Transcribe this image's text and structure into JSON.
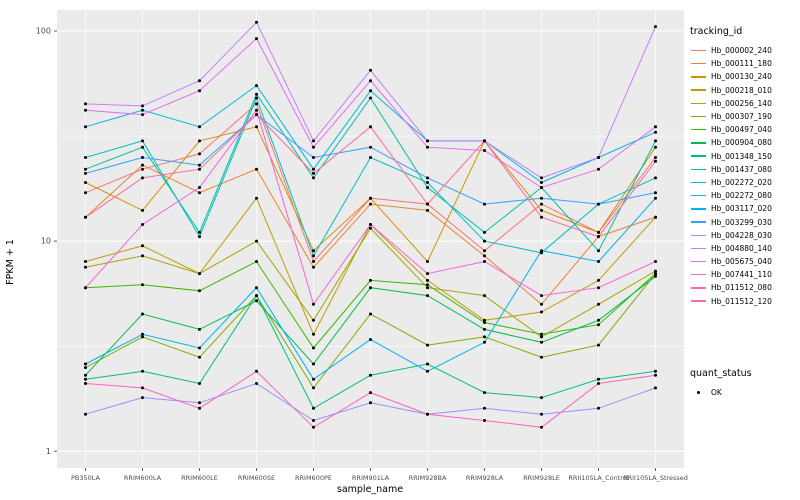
{
  "figure": {
    "x_axis_title": "sample_name",
    "y_axis_title": "FPKM + 1",
    "panel_color": "#EBEBEB",
    "gridline_color": "#FFFFFF",
    "tick_label_color": "#4D4D4D",
    "point_color": "#000000"
  },
  "legend": {
    "tracking_title": "tracking_id",
    "quant_title": "quant_status",
    "quant_entries": [
      {
        "label": "OK",
        "marker": "point-icon"
      }
    ]
  },
  "chart_data": {
    "type": "line",
    "title": "",
    "xlabel": "sample_name",
    "ylabel": "FPKM + 1",
    "y_scale": "log10",
    "ylim": [
      1,
      110
    ],
    "y_major_ticks": [
      1,
      10,
      100
    ],
    "y_minor_ticks": [
      3.1623,
      31.623
    ],
    "grid": true,
    "legend_position": "right",
    "point_marker": "black-point",
    "quant_status": "OK",
    "categories": [
      "PB350LA",
      "RRIM600LA",
      "RRIM600LE",
      "RRIM600SE",
      "RRIM600PE",
      "RRIM901LA",
      "RRIM928BA",
      "RRIM928LA",
      "RRIM928LE",
      "RRII105LA_Control",
      "RRII105LA_Stressed"
    ],
    "series": [
      {
        "name": "Hb_000002_240",
        "color": "#F8766D",
        "values": [
          17,
          22,
          26,
          45,
          8,
          16,
          15,
          9,
          15,
          11,
          25
        ]
      },
      {
        "name": "Hb_000111_180",
        "color": "#EA8331",
        "values": [
          13,
          23,
          17,
          22,
          7.5,
          15,
          14,
          8.5,
          5,
          10.5,
          13
        ]
      },
      {
        "name": "Hb_000130_240",
        "color": "#D89000",
        "values": [
          19,
          14,
          30,
          35,
          9,
          16,
          8,
          30,
          14,
          11,
          28
        ]
      },
      {
        "name": "Hb_000218_010",
        "color": "#C09B00",
        "values": [
          8,
          9.5,
          7,
          16,
          3.6,
          12,
          6.5,
          4.2,
          4.6,
          6.5,
          13
        ]
      },
      {
        "name": "Hb_000256_140",
        "color": "#A3A500",
        "values": [
          7.5,
          8.5,
          7,
          10,
          4.2,
          11.5,
          6,
          5.5,
          3.5,
          5,
          7.2
        ]
      },
      {
        "name": "Hb_000307_190",
        "color": "#7CAE00",
        "values": [
          2.5,
          3.5,
          2.8,
          5.5,
          2,
          4.5,
          3.2,
          3.5,
          2.8,
          3.2,
          7
        ]
      },
      {
        "name": "Hb_000497_040",
        "color": "#39B600",
        "values": [
          6,
          6.2,
          5.8,
          8,
          3.1,
          6.5,
          6.2,
          4.1,
          3.6,
          4,
          7
        ]
      },
      {
        "name": "Hb_000904_080",
        "color": "#00BB4E",
        "values": [
          2.3,
          4.5,
          3.8,
          5.2,
          2.6,
          6,
          5.5,
          3.8,
          3.3,
          4.2,
          6.8
        ]
      },
      {
        "name": "Hb_001348_150",
        "color": "#00BF7D",
        "values": [
          2.2,
          2.4,
          2.1,
          5.5,
          1.6,
          2.3,
          2.6,
          1.9,
          1.8,
          2.2,
          2.4
        ]
      },
      {
        "name": "Hb_001437_080",
        "color": "#00C1A3",
        "values": [
          22,
          28,
          11,
          50,
          20,
          48,
          18,
          11,
          18,
          9,
          30
        ]
      },
      {
        "name": "Hb_002272_020",
        "color": "#00BFC4",
        "values": [
          25,
          30,
          10.5,
          48,
          8.5,
          25,
          19,
          10,
          8.8,
          15,
          20
        ]
      },
      {
        "name": "Hb_002272_080",
        "color": "#00BAE0",
        "values": [
          35,
          42,
          35,
          55,
          22,
          52,
          30,
          30,
          19,
          25,
          33
        ]
      },
      {
        "name": "Hb_003117_020",
        "color": "#00B0F6",
        "values": [
          2.6,
          3.6,
          3.1,
          6,
          2.2,
          3.4,
          2.4,
          3.3,
          9,
          8,
          16
        ]
      },
      {
        "name": "Hb_003299_030",
        "color": "#35A2FF",
        "values": [
          21,
          25,
          23,
          40,
          25,
          28,
          20,
          15,
          16,
          15,
          17
        ]
      },
      {
        "name": "Hb_004228_030",
        "color": "#9590FF",
        "values": [
          1.5,
          1.8,
          1.7,
          2.1,
          1.4,
          1.7,
          1.5,
          1.6,
          1.5,
          1.6,
          2
        ]
      },
      {
        "name": "Hb_004880_140",
        "color": "#C77CFF",
        "values": [
          45,
          44,
          58,
          110,
          30,
          65,
          30,
          30,
          20,
          25,
          105
        ]
      },
      {
        "name": "Hb_005675_040",
        "color": "#E76BF3",
        "values": [
          42,
          40,
          52,
          92,
          28,
          58,
          28,
          27,
          18,
          22,
          35
        ]
      },
      {
        "name": "Hb_007441_110",
        "color": "#FA62DB",
        "values": [
          6,
          12,
          18,
          42,
          5,
          12,
          7,
          8,
          5.5,
          6,
          8
        ]
      },
      {
        "name": "Hb_011512_080",
        "color": "#FF62BC",
        "values": [
          2.1,
          2,
          1.6,
          2.4,
          1.3,
          1.9,
          1.5,
          1.4,
          1.3,
          2.1,
          2.3
        ]
      },
      {
        "name": "Hb_011512_120",
        "color": "#FF6A98",
        "values": [
          13,
          20,
          22,
          40,
          21,
          35,
          15,
          30,
          13,
          10.5,
          24
        ]
      }
    ]
  }
}
